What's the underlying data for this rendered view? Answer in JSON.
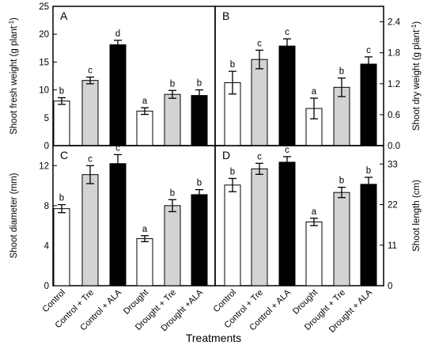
{
  "chart_data": {
    "type": "bar",
    "xlabel": "Treatments",
    "categories": [
      "Control",
      "Control + Tre",
      "Control + ALA",
      "Drought",
      "Drought + Tre",
      "Drought +ALA"
    ],
    "categories_right": [
      "Control",
      "Control + Tre",
      "Control + ALA",
      "Drought",
      "Drought + Tre",
      "Drought + ALA"
    ],
    "bar_colors": [
      "#ffffff",
      "#d3d3d3",
      "#000000",
      "#ffffff",
      "#d3d3d3",
      "#000000"
    ],
    "panels": [
      {
        "id": "A",
        "letter": "A",
        "ylabel": "Shoot fresh weight (g plant",
        "ylabel_sup": "-1",
        "ylabel_end": ")",
        "ylim": [
          0,
          25
        ],
        "yticks": [
          0,
          5,
          10,
          15,
          20,
          25
        ],
        "values": [
          8.0,
          11.7,
          18.1,
          6.2,
          9.2,
          9.0
        ],
        "errors": [
          0.6,
          0.6,
          0.8,
          0.6,
          0.7,
          1.0
        ],
        "letters": [
          "b",
          "c",
          "d",
          "a",
          "b",
          "b"
        ]
      },
      {
        "id": "B",
        "letter": "B",
        "ylabel": "Shoot dry weight (g plant",
        "ylabel_sup": "-1",
        "ylabel_end": ")",
        "ylim": [
          0,
          2.7
        ],
        "yticks": [
          "0.0",
          "0.6",
          "1.2",
          "1.8",
          "2.4"
        ],
        "values": [
          1.22,
          1.67,
          1.93,
          0.72,
          1.13,
          1.58
        ],
        "errors": [
          0.22,
          0.18,
          0.14,
          0.2,
          0.18,
          0.14
        ],
        "letters": [
          "b",
          "c",
          "c",
          "a",
          "b",
          "c"
        ]
      },
      {
        "id": "C",
        "letter": "C",
        "ylabel": "Shoot diameter (mm)",
        "ylim": [
          0,
          14
        ],
        "yticks": [
          0,
          4,
          8,
          12
        ],
        "values": [
          7.7,
          11.1,
          12.2,
          4.7,
          8.0,
          9.1
        ],
        "errors": [
          0.4,
          0.9,
          0.9,
          0.3,
          0.6,
          0.5
        ],
        "letters": [
          "b",
          "c",
          "c",
          "a",
          "b",
          "b"
        ]
      },
      {
        "id": "D",
        "letter": "D",
        "ylabel": "Shoot length (cm)",
        "ylim": [
          0,
          38
        ],
        "yticks": [
          0,
          11,
          22,
          33
        ],
        "values": [
          27.3,
          31.7,
          33.5,
          17.3,
          25.3,
          27.5
        ],
        "errors": [
          1.8,
          1.5,
          1.5,
          1.0,
          1.4,
          1.9
        ],
        "letters": [
          "b",
          "c",
          "c",
          "a",
          "b",
          "b"
        ]
      }
    ]
  }
}
